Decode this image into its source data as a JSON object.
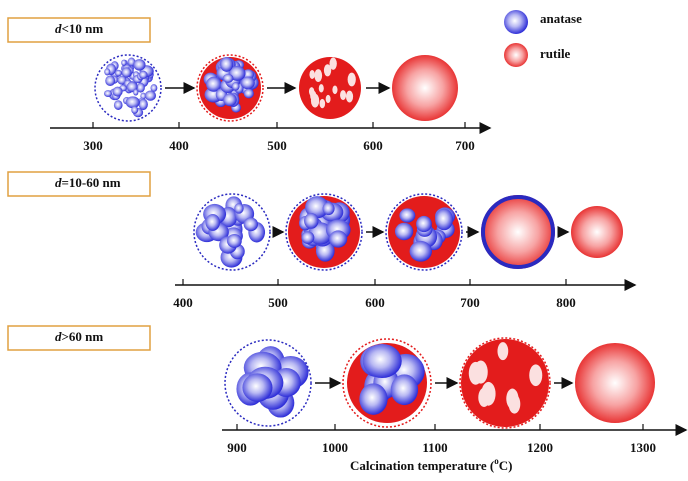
{
  "legend": {
    "items": [
      {
        "label": "anatase"
      },
      {
        "label": "rutile"
      }
    ]
  },
  "panels": [
    {
      "label": {
        "variable": "d",
        "text": "<10 nm"
      },
      "ticks": [
        300,
        400,
        500,
        600,
        700
      ]
    },
    {
      "label": {
        "variable": "d",
        "text": "=10-60 nm"
      },
      "ticks": [
        400,
        500,
        600,
        700,
        800
      ]
    },
    {
      "label": {
        "variable": "d",
        "text": ">60 nm"
      },
      "ticks": [
        900,
        1000,
        1100,
        1200,
        1300
      ]
    }
  ],
  "axis_title": {
    "text": "Calcination temperature (",
    "superscript": "o",
    "unit": "C)"
  }
}
